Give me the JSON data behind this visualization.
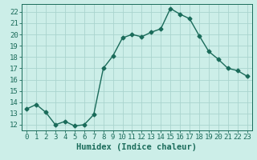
{
  "x": [
    0,
    1,
    2,
    3,
    4,
    5,
    6,
    7,
    8,
    9,
    10,
    11,
    12,
    13,
    14,
    15,
    16,
    17,
    18,
    19,
    20,
    21,
    22,
    23
  ],
  "y": [
    13.4,
    13.8,
    13.1,
    12.0,
    12.3,
    11.9,
    12.0,
    12.9,
    17.0,
    18.1,
    19.7,
    20.0,
    19.8,
    20.2,
    20.5,
    22.3,
    21.8,
    21.4,
    19.9,
    18.5,
    17.8,
    17.0,
    16.8,
    16.3
  ],
  "line_color": "#1a6b5a",
  "marker": "D",
  "markersize": 2.5,
  "linewidth": 1.0,
  "background_color": "#cceee8",
  "grid_color": "#aad4ce",
  "xlabel": "Humidex (Indice chaleur)",
  "xlabel_fontsize": 7.5,
  "ylabel_ticks": [
    12,
    13,
    14,
    15,
    16,
    17,
    18,
    19,
    20,
    21,
    22
  ],
  "ylim": [
    11.5,
    22.7
  ],
  "xlim": [
    -0.5,
    23.5
  ],
  "tick_color": "#1a6b5a",
  "tick_fontsize": 6.5,
  "xtick_labels": [
    "0",
    "1",
    "2",
    "3",
    "4",
    "5",
    "6",
    "7",
    "8",
    "9",
    "10",
    "11",
    "12",
    "13",
    "14",
    "15",
    "16",
    "17",
    "18",
    "19",
    "20",
    "21",
    "22",
    "23"
  ]
}
